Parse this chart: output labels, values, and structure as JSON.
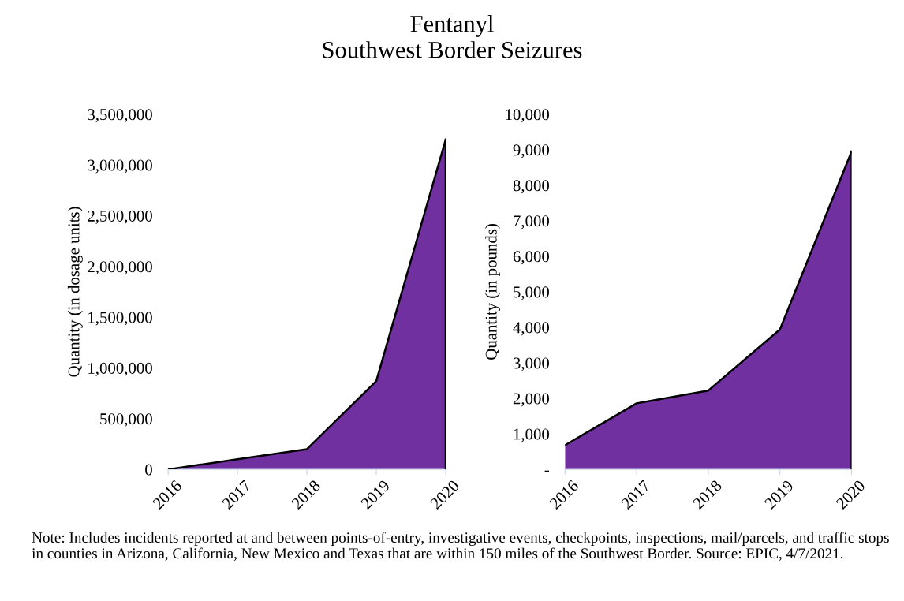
{
  "chart_data": [
    {
      "type": "area",
      "title": "Fentanyl\nSouthwest Border Seizures",
      "ylabel": "Quantity (in dosage units)",
      "categories": [
        "2016",
        "2017",
        "2018",
        "2019",
        "2020"
      ],
      "series": [
        {
          "color": "#7030a0",
          "values": [
            0,
            100000,
            200000,
            870000,
            3250000
          ]
        }
      ],
      "ylim": [
        0,
        3500000
      ],
      "yticks": [
        {
          "value": 0,
          "label": "0"
        },
        {
          "value": 500000,
          "label": "500,000"
        },
        {
          "value": 1000000,
          "label": "1,000,000"
        },
        {
          "value": 1500000,
          "label": "1,500,000"
        },
        {
          "value": 2000000,
          "label": "2,000,000"
        },
        {
          "value": 2500000,
          "label": "2,500,000"
        },
        {
          "value": 3000000,
          "label": "3,000,000"
        },
        {
          "value": 3500000,
          "label": "3,500,000"
        }
      ],
      "grid": false
    },
    {
      "type": "area",
      "ylabel": "Quantity (in pounds)",
      "categories": [
        "2016",
        "2017",
        "2018",
        "2019",
        "2020"
      ],
      "series": [
        {
          "color": "#7030a0",
          "values": [
            680,
            1860,
            2220,
            3940,
            8950
          ]
        }
      ],
      "ylim": [
        0,
        10000
      ],
      "yticks": [
        {
          "value": 0,
          "label": "-"
        },
        {
          "value": 1000,
          "label": "1,000"
        },
        {
          "value": 2000,
          "label": "2,000"
        },
        {
          "value": 3000,
          "label": "3,000"
        },
        {
          "value": 4000,
          "label": "4,000"
        },
        {
          "value": 5000,
          "label": "5,000"
        },
        {
          "value": 6000,
          "label": "6,000"
        },
        {
          "value": 7000,
          "label": "7,000"
        },
        {
          "value": 8000,
          "label": "8,000"
        },
        {
          "value": 9000,
          "label": "9,000"
        },
        {
          "value": 10000,
          "label": "10,000"
        }
      ],
      "grid": false,
      "annotations": [
        "Note: Includes incidents reported at and between points-of-entry, investigative events, checkpoints, inspections, mail/parcels, and traffic stops in counties in Arizona, California, New Mexico and Texas that are within 150 miles of the Southwest Border. Source: EPIC, 4/7/2021."
      ]
    }
  ]
}
